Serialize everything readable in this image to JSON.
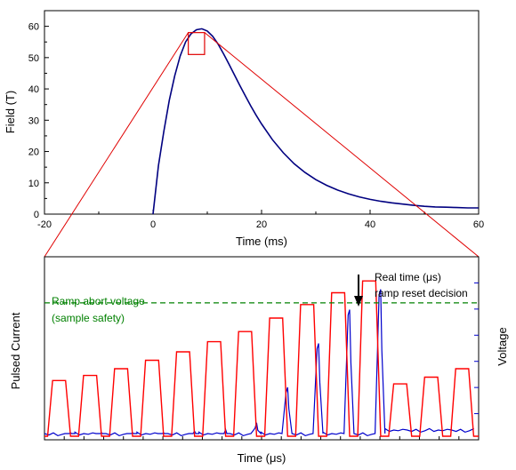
{
  "chart_data": [
    {
      "type": "line",
      "xlabel": "Time (ms)",
      "ylabel": "Field (T)",
      "xlim": [
        -20,
        60
      ],
      "ylim": [
        0,
        65
      ],
      "x_ticks": [
        "-20",
        "0",
        "20",
        "40",
        "60"
      ],
      "y_ticks": [
        "0",
        "10",
        "20",
        "30",
        "40",
        "50",
        "60"
      ],
      "series": [
        {
          "color": "#000080",
          "x": [
            0,
            1,
            2,
            3,
            4,
            5,
            6,
            7,
            8,
            9,
            10,
            11,
            12,
            13,
            14,
            15,
            16,
            17,
            18,
            19,
            20,
            22,
            24,
            26,
            28,
            30,
            32,
            34,
            36,
            38,
            40,
            42,
            44,
            46,
            48,
            50,
            52,
            54,
            56,
            58,
            60
          ],
          "y": [
            0,
            15.5,
            26.5,
            36.4,
            44.2,
            50.5,
            55,
            57.6,
            58.9,
            59.2,
            58.5,
            56.8,
            54.3,
            51.2,
            47.9,
            44.5,
            41.1,
            37.8,
            34.6,
            31.6,
            28.8,
            23.8,
            19.6,
            16.1,
            13.3,
            11.0,
            9.2,
            7.7,
            6.5,
            5.5,
            4.7,
            4.1,
            3.6,
            3.2,
            2.8,
            2.5,
            2.3,
            2.2,
            2.1,
            2.0,
            2.0
          ]
        }
      ],
      "zoom_box": {
        "x": [
          6.5,
          9.5
        ],
        "y": [
          51,
          58
        ]
      }
    },
    {
      "type": "line",
      "xlabel": "Time (μs)",
      "ylabel_left": "Pulsed Current",
      "ylabel_right": "Voltage",
      "series": [
        {
          "name": "Pulsed Current",
          "color": "#ff0000",
          "pulse_amplitudes": [
            0.33,
            0.36,
            0.4,
            0.45,
            0.5,
            0.56,
            0.62,
            0.7,
            0.78,
            0.85,
            0.92,
            0.31,
            0.35,
            0.4
          ]
        },
        {
          "name": "Voltage",
          "color": "#0000cc",
          "spike_amplitudes": [
            0.02,
            0.02,
            0.02,
            0.02,
            0.03,
            0.04,
            0.08,
            0.29,
            0.55,
            0.75,
            0.87
          ]
        }
      ],
      "threshold": {
        "label_line1": "Ramp abort voltage",
        "label_line2": "(sample safety)",
        "color": "#008000",
        "level": 0.79
      },
      "annotation": {
        "line1": "Real time (μs)",
        "line2": "ramp reset decision"
      }
    }
  ]
}
